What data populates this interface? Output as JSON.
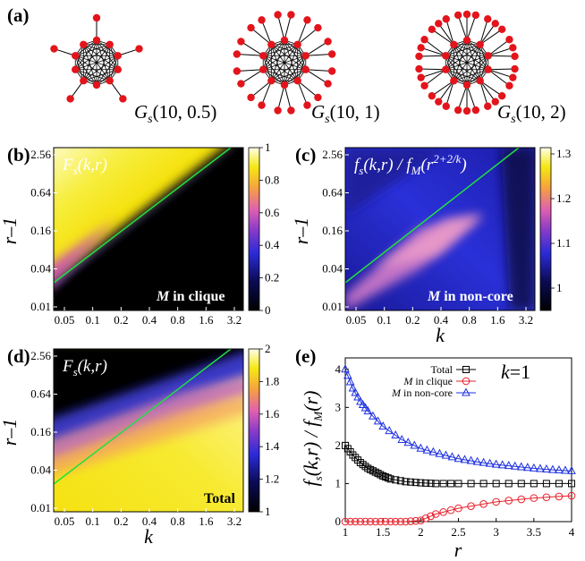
{
  "panels": {
    "a": {
      "label": "(a)",
      "graphs": [
        {
          "name": "G",
          "sub": "s",
          "args": "(10, 0.5)",
          "leaves": 1
        },
        {
          "name": "G",
          "sub": "s",
          "args": "(10, 1)",
          "leaves": 2
        },
        {
          "name": "G",
          "sub": "s",
          "args": "(10, 2)",
          "leaves": 3
        }
      ]
    },
    "b": {
      "label": "(b)",
      "formula": "F",
      "formula_sub": "s",
      "formula_args": "(k,r)",
      "note_m": "M",
      "note_rest": " in clique",
      "colorbar_ticks": [
        "1",
        "0.8",
        "0.6",
        "0.4",
        "0.2",
        "0"
      ]
    },
    "c": {
      "label": "(c)",
      "formula": "f_s(k,r) / f_M(r^{2+2/k})",
      "note_m": "M",
      "note_rest": " in non-core",
      "colorbar_ticks": [
        "1.3",
        "1.2",
        "1.1",
        "1"
      ]
    },
    "d": {
      "label": "(d)",
      "formula": "F",
      "formula_sub": "s",
      "formula_args": "(k,r)",
      "note": "Total",
      "colorbar_ticks": [
        "2",
        "1.8",
        "1.6",
        "1.4",
        "1.2",
        "1"
      ]
    },
    "e": {
      "label": "(e)",
      "k_label": "k=1",
      "ylabel": "f_s(k,r) / f_M(r)",
      "xlabel": "r"
    }
  },
  "heatmap_axes": {
    "xlabel": "k",
    "ylabel": "r–1",
    "xticks": [
      "0.05",
      "0.1",
      "0.2",
      "0.4",
      "0.8",
      "1.6",
      "3.2"
    ],
    "yticks": [
      "2.56",
      "0.64",
      "0.16",
      "0.04",
      "0.01"
    ]
  },
  "chart_data": [
    {
      "type": "line",
      "panel": "e",
      "xlabel": "r",
      "ylabel": "f_s(k,r) / f_M(r)",
      "xlim": [
        1,
        4
      ],
      "ylim": [
        0,
        4.3
      ],
      "xticks": [
        "1",
        "1.5",
        "2",
        "2.5",
        "3",
        "3.5",
        "4"
      ],
      "yticks": [
        "0",
        "1",
        "2",
        "3",
        "4"
      ],
      "legend_position": "top-left",
      "series": [
        {
          "name": "Total",
          "color": "#000000",
          "marker": "square",
          "x": [
            1.0,
            1.1,
            1.2,
            1.3,
            1.4,
            1.5,
            1.6,
            1.8,
            2.0,
            2.2,
            2.5,
            3.0,
            3.5,
            4.0
          ],
          "values": [
            2.0,
            1.75,
            1.55,
            1.4,
            1.3,
            1.2,
            1.12,
            1.05,
            1.02,
            1.0,
            1.0,
            1.0,
            1.0,
            1.0
          ]
        },
        {
          "name": "M in clique",
          "color": "#e8202a",
          "marker": "circle",
          "x": [
            1.0,
            1.2,
            1.4,
            1.6,
            1.8,
            2.0,
            2.2,
            2.5,
            3.0,
            3.5,
            4.0
          ],
          "values": [
            0.0,
            0.0,
            0.0,
            0.0,
            0.0,
            0.03,
            0.2,
            0.35,
            0.52,
            0.62,
            0.68
          ]
        },
        {
          "name": "M in non-core",
          "color": "#1f32e0",
          "marker": "triangle",
          "x": [
            1.0,
            1.1,
            1.2,
            1.3,
            1.5,
            1.75,
            2.0,
            2.25,
            2.5,
            2.75,
            3.0,
            3.25,
            3.5,
            3.75,
            4.0
          ],
          "values": [
            4.0,
            3.5,
            3.15,
            2.9,
            2.5,
            2.15,
            1.92,
            1.78,
            1.65,
            1.57,
            1.5,
            1.45,
            1.4,
            1.36,
            1.33
          ]
        }
      ]
    },
    {
      "type": "heatmap",
      "panel": "b",
      "xlabel": "k",
      "ylabel": "r–1",
      "colorbar_range": [
        0,
        1
      ]
    },
    {
      "type": "heatmap",
      "panel": "c",
      "xlabel": "k",
      "ylabel": "r–1",
      "colorbar_range": [
        0.97,
        1.3
      ]
    },
    {
      "type": "heatmap",
      "panel": "d",
      "xlabel": "k",
      "ylabel": "r–1",
      "colorbar_range": [
        1,
        2
      ]
    }
  ]
}
